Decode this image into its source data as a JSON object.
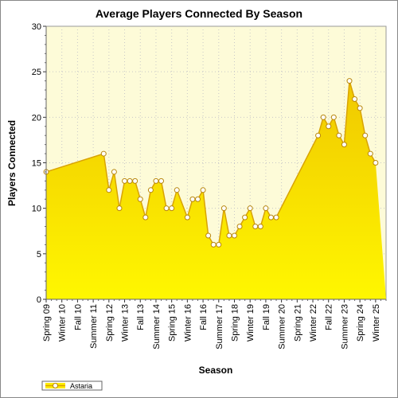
{
  "chart_data": {
    "type": "area",
    "title": "Average Players Connected By Season",
    "xlabel": "Season",
    "ylabel": "Players Connected",
    "ylim": [
      0,
      30
    ],
    "yticks": [
      0,
      5,
      10,
      15,
      20,
      25,
      30
    ],
    "grid": true,
    "legend_position": "bottom-left",
    "categories": [
      "Spring 09",
      "Summer 09",
      "Fall 09",
      "Winter 10",
      "Spring 10",
      "Summer 10",
      "Fall 10",
      "Winter 11",
      "Spring 11",
      "Summer 11",
      "Fall 11",
      "Winter 12",
      "Spring 12",
      "Summer 12",
      "Fall 12",
      "Winter 13",
      "Spring 13",
      "Summer 13",
      "Fall 13",
      "Winter 14",
      "Spring 14",
      "Summer 14",
      "Fall 14",
      "Winter 15",
      "Spring 15",
      "Summer 15",
      "Fall 15",
      "Winter 16",
      "Spring 16",
      "Summer 16",
      "Fall 16",
      "Winter 17",
      "Spring 17",
      "Summer 17",
      "Fall 17",
      "Winter 18",
      "Spring 18",
      "Summer 18",
      "Fall 18",
      "Winter 19",
      "Spring 19",
      "Summer 19",
      "Fall 19",
      "Winter 20",
      "Spring 20",
      "Summer 20",
      "Fall 20",
      "Winter 21",
      "Spring 21",
      "Summer 21",
      "Fall 21",
      "Winter 22",
      "Spring 22",
      "Summer 22",
      "Fall 22",
      "Winter 23",
      "Spring 23",
      "Summer 23",
      "Fall 23",
      "Winter 24",
      "Spring 24",
      "Summer 24",
      "Fall 24",
      "Winter 25",
      "Spring 25",
      "Summer 25"
    ],
    "tick_labels": [
      "Spring 09",
      "Winter 10",
      "Fall 10",
      "Summer 11",
      "Spring 12",
      "Winter 13",
      "Fall 13",
      "Summer 14",
      "Spring 15",
      "Winter 16",
      "Fall 16",
      "Summer 17",
      "Spring 18",
      "Winter 19",
      "Fall 19",
      "Summer 20",
      "Spring 21",
      "Winter 22",
      "Fall 22",
      "Summer 23",
      "Spring 24",
      "Winter 25"
    ],
    "series": [
      {
        "name": "Astaria",
        "points": [
          {
            "category": "Spring 09",
            "value": 14
          },
          {
            "category": "Winter 12",
            "value": 16
          },
          {
            "category": "Spring 12",
            "value": 12
          },
          {
            "category": "Summer 12",
            "value": 14
          },
          {
            "category": "Fall 12",
            "value": 10
          },
          {
            "category": "Winter 13",
            "value": 13
          },
          {
            "category": "Spring 13",
            "value": 13
          },
          {
            "category": "Summer 13",
            "value": 13
          },
          {
            "category": "Fall 13",
            "value": 11
          },
          {
            "category": "Winter 14",
            "value": 9
          },
          {
            "category": "Spring 14",
            "value": 12
          },
          {
            "category": "Summer 14",
            "value": 13
          },
          {
            "category": "Fall 14",
            "value": 13
          },
          {
            "category": "Winter 15",
            "value": 10
          },
          {
            "category": "Spring 15",
            "value": 10
          },
          {
            "category": "Summer 15",
            "value": 12
          },
          {
            "category": "Winter 16",
            "value": 9
          },
          {
            "category": "Spring 16",
            "value": 11
          },
          {
            "category": "Summer 16",
            "value": 11
          },
          {
            "category": "Fall 16",
            "value": 12
          },
          {
            "category": "Winter 17",
            "value": 7
          },
          {
            "category": "Spring 17",
            "value": 6
          },
          {
            "category": "Summer 17",
            "value": 6
          },
          {
            "category": "Fall 17",
            "value": 10
          },
          {
            "category": "Winter 18",
            "value": 7
          },
          {
            "category": "Spring 18",
            "value": 7
          },
          {
            "category": "Summer 18",
            "value": 8
          },
          {
            "category": "Fall 18",
            "value": 9
          },
          {
            "category": "Winter 19",
            "value": 10
          },
          {
            "category": "Spring 19",
            "value": 8
          },
          {
            "category": "Summer 19",
            "value": 8
          },
          {
            "category": "Fall 19",
            "value": 10
          },
          {
            "category": "Winter 20",
            "value": 9
          },
          {
            "category": "Spring 20",
            "value": 9
          },
          {
            "category": "Spring 22",
            "value": 18
          },
          {
            "category": "Summer 22",
            "value": 20
          },
          {
            "category": "Fall 22",
            "value": 19
          },
          {
            "category": "Winter 23",
            "value": 20
          },
          {
            "category": "Spring 23",
            "value": 18
          },
          {
            "category": "Summer 23",
            "value": 17
          },
          {
            "category": "Fall 23",
            "value": 24
          },
          {
            "category": "Winter 24",
            "value": 22
          },
          {
            "category": "Spring 24",
            "value": 21
          },
          {
            "category": "Summer 24",
            "value": 18
          },
          {
            "category": "Fall 24",
            "value": 16
          },
          {
            "category": "Winter 25",
            "value": 15
          }
        ]
      }
    ]
  },
  "colors": {
    "plot_background": "#fdfbd8",
    "grid": "#c8c8c8",
    "fill": "#ffec00",
    "line": "#d9a300",
    "marker_fill": "#ffffff",
    "marker_stroke": "#b8860b"
  }
}
